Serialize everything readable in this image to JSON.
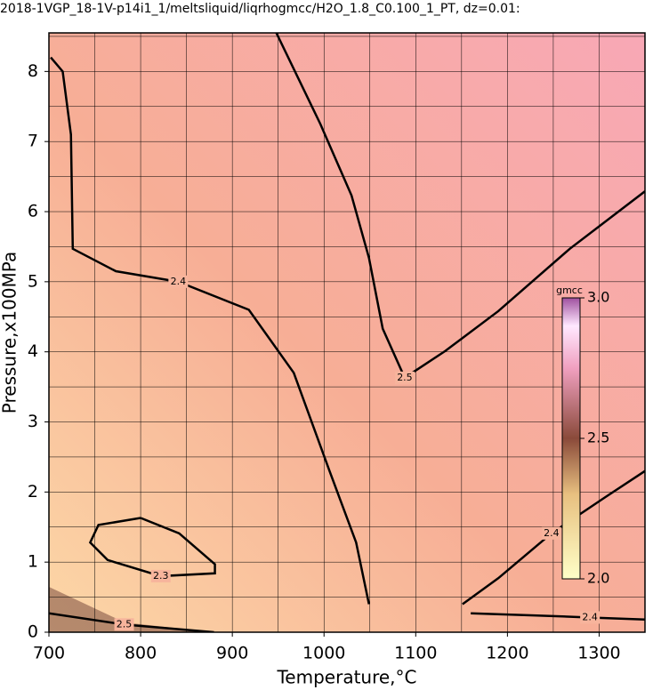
{
  "chart_data": {
    "type": "contour",
    "title": "2018-1VGP_18-1V-p14i1_1/meltsliquid/liqrhogmcc/H2O_1.8_C0.100_1_PT, dz=0.01:",
    "x_label": "Temperature,°C",
    "y_label": "Pressure,x100MPa",
    "xlim": [
      700,
      1350
    ],
    "ylim": [
      0,
      8.55
    ],
    "xticks": [
      700,
      800,
      900,
      1000,
      1100,
      1200,
      1300
    ],
    "yticks": [
      0,
      1,
      2,
      3,
      4,
      5,
      6,
      7,
      8
    ],
    "xgrid": [
      750,
      800,
      850,
      900,
      950,
      1000,
      1050,
      1100,
      1150,
      1200,
      1250,
      1300
    ],
    "ygrid": [
      0.5,
      1,
      1.5,
      2,
      2.5,
      3,
      3.5,
      4,
      4.5,
      5,
      5.5,
      6,
      6.5,
      7,
      7.5,
      8,
      8.5
    ],
    "contours": [
      {
        "level": 2.3,
        "label": "2.3",
        "x": [
          800,
          842,
          881,
          881,
          822,
          764,
          745,
          754,
          800
        ],
        "y": [
          1.63,
          1.41,
          0.97,
          0.84,
          0.8,
          1.03,
          1.28,
          1.53,
          1.63
        ]
      },
      {
        "level": 2.4,
        "label": "2.4",
        "x": [
          702,
          715,
          724,
          726,
          773,
          841,
          918,
          967,
          1006,
          1035,
          1049
        ],
        "y": [
          8.2,
          8.0,
          7.1,
          5.47,
          5.15,
          5.0,
          4.6,
          3.7,
          2.3,
          1.28,
          0.4
        ]
      },
      {
        "level": 2.5,
        "label": "2.5",
        "x": [
          948,
          996,
          1030,
          1049,
          1064,
          1088,
          1132,
          1190,
          1268,
          1350
        ],
        "y": [
          8.55,
          7.25,
          6.23,
          5.34,
          4.33,
          3.63,
          4.01,
          4.58,
          5.47,
          6.29
        ]
      },
      {
        "level": 2.4,
        "label": "2.4",
        "x": [
          1151,
          1190,
          1248,
          1306,
          1350
        ],
        "y": [
          0.4,
          0.77,
          1.41,
          1.92,
          2.3
        ]
      },
      {
        "level": 2.4,
        "label": "2.4",
        "x": [
          1160,
          1229,
          1290,
          1350
        ],
        "y": [
          0.27,
          0.24,
          0.21,
          0.18
        ]
      },
      {
        "level": 2.5,
        "label": "2.5",
        "x": [
          700,
          782,
          880
        ],
        "y": [
          0.27,
          0.11,
          0
        ]
      }
    ],
    "colorbar": {
      "label": "gmcc",
      "lim": [
        2.0,
        3.0
      ],
      "ticks": [
        {
          "value": 2.0,
          "label": "2.0"
        },
        {
          "value": 2.5,
          "label": "2.5"
        },
        {
          "value": 3.0,
          "label": "3.0"
        }
      ]
    }
  }
}
